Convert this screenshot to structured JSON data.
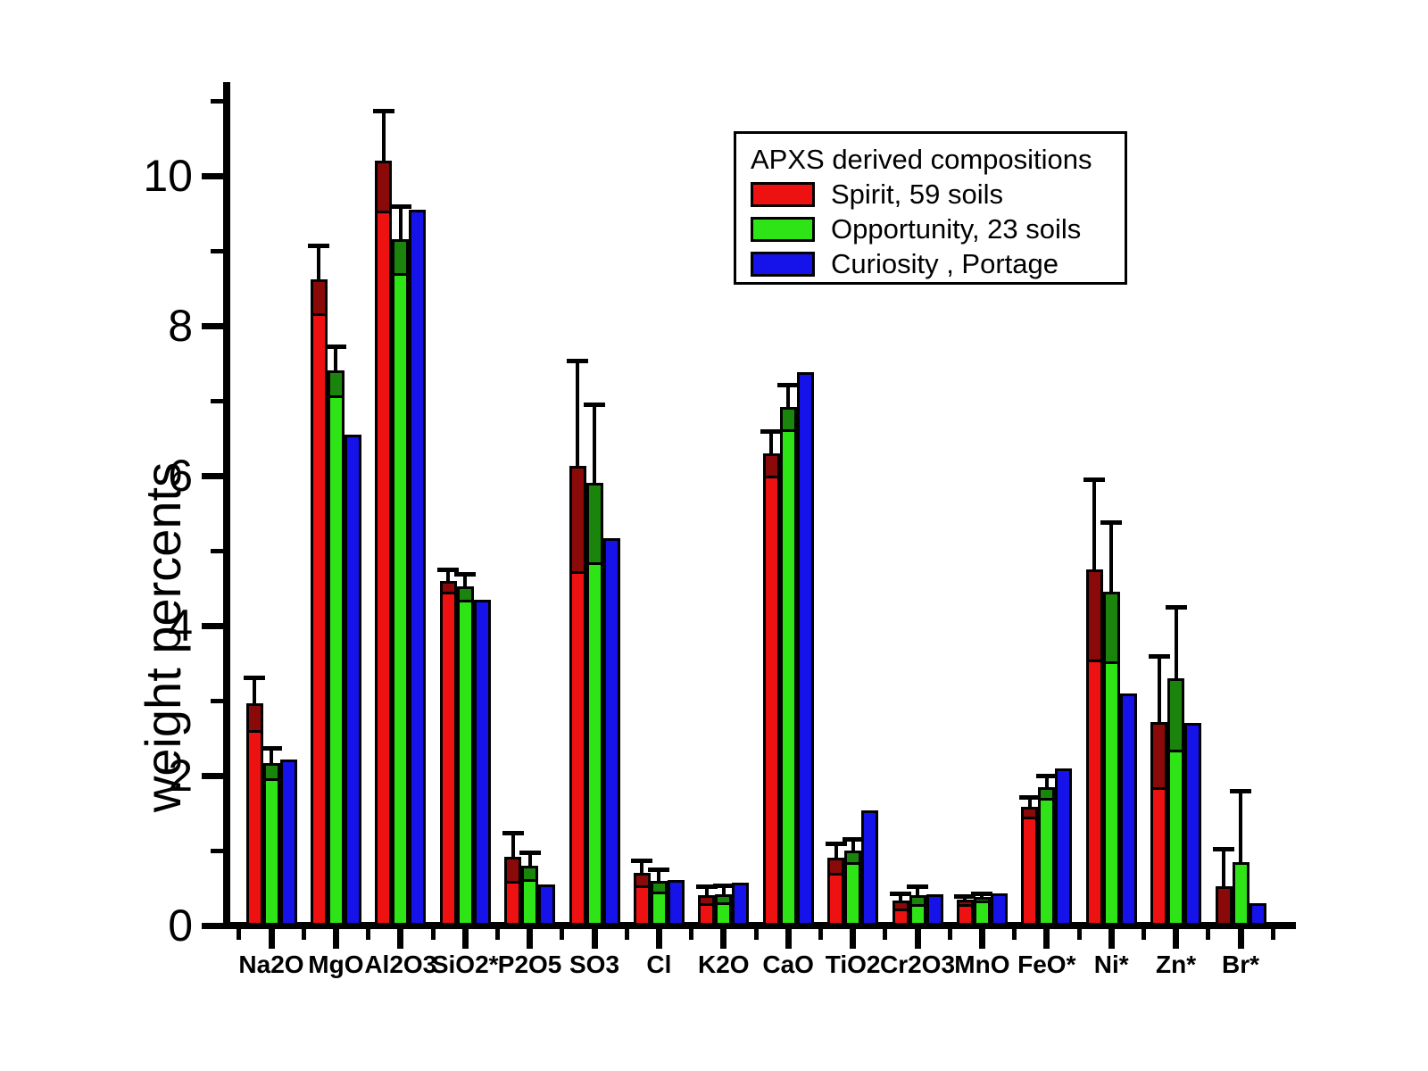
{
  "y_axis": {
    "label": "weight percents",
    "major_ticks": [
      0,
      2,
      4,
      6,
      8,
      10
    ],
    "minor_ticks": [
      1,
      3,
      5,
      7,
      9,
      11
    ]
  },
  "legend": {
    "title": "APXS derived compositions",
    "entries": [
      {
        "label": "Spirit, 59 soils",
        "color": "#ee1111"
      },
      {
        "label": "Opportunity, 23 soils",
        "color": "#2ee417"
      },
      {
        "label": "Curiosity , Portage",
        "color": "#1612ea"
      }
    ]
  },
  "chart_data": {
    "type": "bar",
    "title": "APXS derived compositions",
    "xlabel": "",
    "ylabel": "weight percents",
    "ylim": [
      0,
      11.2
    ],
    "grid": false,
    "legend_position": "top-right",
    "error_bars": "on Spirit and Opportunity series only",
    "categories": [
      "Na2O",
      "MgO",
      "Al2O3",
      "SiO2*",
      "P2O5",
      "SO3",
      "Cl",
      "K2O",
      "CaO",
      "TiO2",
      "Cr2O3",
      "MnO",
      "FeO*",
      "Ni*",
      "Zn*",
      "Br*"
    ],
    "series": [
      {
        "name": "Spirit, 59 soils",
        "color": "#ee1111",
        "values": [
          2.96,
          8.62,
          10.2,
          4.6,
          0.92,
          6.13,
          0.7,
          0.41,
          6.3,
          0.9,
          0.33,
          0.34,
          1.58,
          4.75,
          2.72,
          0.52
        ],
        "err_up": [
          0.35,
          0.45,
          0.67,
          0.15,
          0.32,
          1.4,
          0.17,
          0.11,
          0.3,
          0.2,
          0.1,
          0.05,
          0.13,
          1.2,
          0.88,
          0.5
        ],
        "err_down": [
          0.35,
          0.45,
          0.67,
          0.15,
          0.32,
          1.4,
          0.17,
          0.11,
          0.3,
          0.2,
          0.1,
          0.05,
          0.13,
          1.2,
          0.88,
          0.5
        ]
      },
      {
        "name": "Opportunity, 23 soils",
        "color": "#2ee417",
        "values": [
          2.17,
          7.4,
          9.15,
          4.52,
          0.8,
          5.9,
          0.6,
          0.42,
          6.92,
          1.0,
          0.4,
          0.38,
          1.85,
          4.45,
          3.3,
          0.85
        ],
        "err_up": [
          0.2,
          0.33,
          0.45,
          0.17,
          0.18,
          1.05,
          0.15,
          0.11,
          0.3,
          0.15,
          0.12,
          0.05,
          0.15,
          0.93,
          0.95,
          0.95
        ],
        "err_down": [
          0.2,
          0.33,
          0.45,
          0.17,
          0.18,
          1.05,
          0.15,
          0.11,
          0.3,
          0.15,
          0.12,
          0.05,
          0.15,
          0.93,
          0.95,
          0.0
        ]
      },
      {
        "name": "Curiosity , Portage",
        "color": "#1612ea",
        "values": [
          2.21,
          6.55,
          9.55,
          4.35,
          0.55,
          5.17,
          0.61,
          0.57,
          7.38,
          1.53,
          0.42,
          0.43,
          2.1,
          3.1,
          2.7,
          0.3
        ]
      }
    ]
  }
}
